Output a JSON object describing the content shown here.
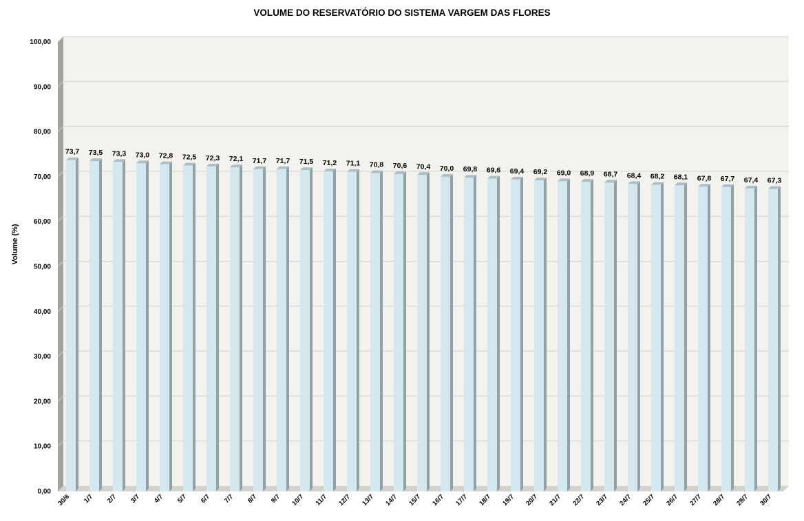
{
  "chart_data": {
    "type": "bar",
    "title": "VOLUME DO RESERVATÓRIO DO SISTEMA VARGEM DAS FLORES",
    "xlabel": "",
    "ylabel": "Volume (%)",
    "ylim": [
      0,
      100
    ],
    "yticks": [
      "0,00",
      "10,00",
      "20,00",
      "30,00",
      "40,00",
      "50,00",
      "60,00",
      "70,00",
      "80,00",
      "90,00",
      "100,00"
    ],
    "grid": true,
    "categories": [
      "30/6",
      "1/7",
      "2/7",
      "3/7",
      "4/7",
      "5/7",
      "6/7",
      "7/7",
      "8/7",
      "9/7",
      "10/7",
      "11/7",
      "12/7",
      "13/7",
      "14/7",
      "15/7",
      "16/7",
      "17/7",
      "18/7",
      "19/7",
      "20/7",
      "21/7",
      "22/7",
      "23/7",
      "24/7",
      "25/7",
      "26/7",
      "27/7",
      "28/7",
      "29/7",
      "30/7"
    ],
    "values": [
      73.7,
      73.5,
      73.3,
      73.0,
      72.8,
      72.5,
      72.3,
      72.1,
      71.7,
      71.7,
      71.5,
      71.2,
      71.1,
      70.8,
      70.6,
      70.4,
      70.0,
      69.8,
      69.6,
      69.4,
      69.2,
      69.0,
      68.9,
      68.7,
      68.4,
      68.2,
      68.1,
      67.8,
      67.7,
      67.4,
      67.3
    ],
    "data_labels": [
      "73,7",
      "73,5",
      "73,3",
      "73,0",
      "72,8",
      "72,5",
      "72,3",
      "72,1",
      "71,7",
      "71,7",
      "71,5",
      "71,2",
      "71,1",
      "70,8",
      "70,6",
      "70,4",
      "70,0",
      "69,8",
      "69,6",
      "69,4",
      "69,2",
      "69,0",
      "68,9",
      "68,7",
      "68,4",
      "68,2",
      "68,1",
      "67,8",
      "67,7",
      "67,4",
      "67,3"
    ],
    "colors": {
      "bar_front": "#d4e8ef",
      "bar_side": "#8fa2a6",
      "bar_top": "#aebfc3",
      "plot_wall": "#f3f2ed",
      "left_wall": "#a3a39d",
      "floor": "#d2d2cc",
      "gridline": "#d0d0d0"
    }
  }
}
